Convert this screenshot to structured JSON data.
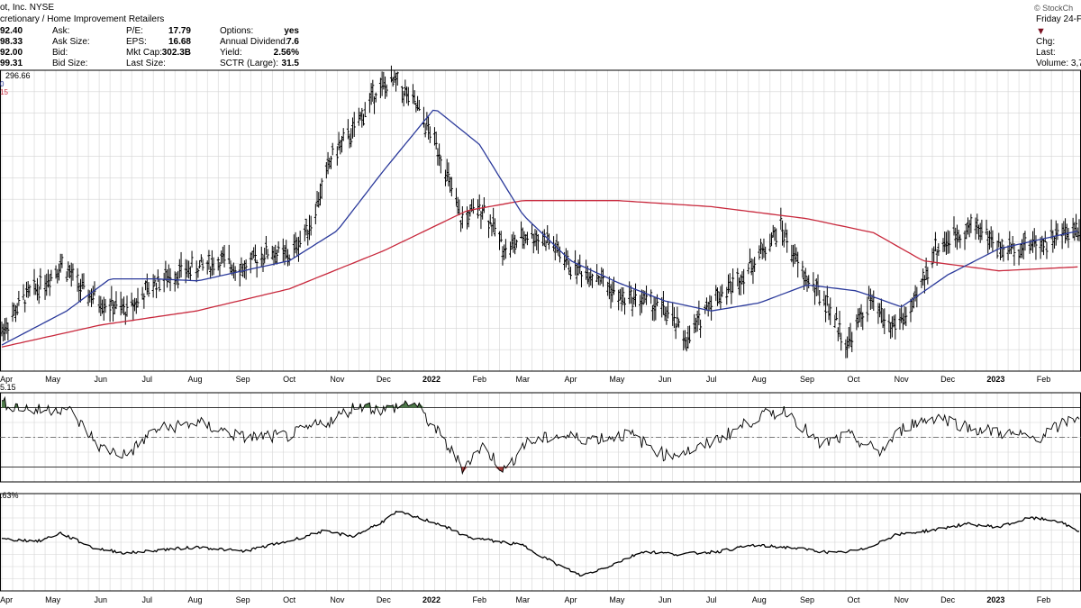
{
  "header": {
    "title_partial": "ot, Inc. NYSE",
    "subtitle_partial": "cretionary / Home Improvement Retailers",
    "watermark": "© StockCh",
    "date_partial": "Friday 24-F",
    "quote_col1": [
      "92.40",
      "98.33",
      "92.00",
      "99.31"
    ],
    "quote_col2_labels": [
      "Ask:",
      "Ask Size:",
      "Bid:",
      "Bid Size:"
    ],
    "quote_col3_labels": [
      "P/E:",
      "EPS:",
      "Mkt Cap:",
      "Last Size:"
    ],
    "quote_col3_values": [
      "17.79",
      "16.68",
      "302.3B",
      ""
    ],
    "quote_col4_labels": [
      "Options:",
      "Annual Dividend:",
      "Yield:",
      "SCTR (Large):"
    ],
    "quote_col4_values": [
      "yes",
      "7.6",
      "2.56%",
      "31.5"
    ],
    "right_labels": [
      "Chg:",
      "Last:",
      "Volume: 3,7"
    ],
    "price_label": "296.66",
    "ma_label_blue": "0",
    "ma_label_red": "15",
    "rsi_label": "5.15",
    "rel_label": ".63%"
  },
  "colors": {
    "price": "#000000",
    "sma50": "#2b3a9b",
    "sma200": "#c8283c",
    "rsi_overbought_fill": "#4e7a4a",
    "rsi_oversold_fill": "#a8403f",
    "grid": "#d4d4d4",
    "border": "#000000"
  },
  "chart_data": [
    {
      "type": "ohlc",
      "title": "ot, Inc. NYSE",
      "x_tick_labels": [
        "Apr",
        "May",
        "Jun",
        "Jul",
        "Aug",
        "Sep",
        "Oct",
        "Nov",
        "Dec",
        "2022",
        "Feb",
        "Mar",
        "Apr",
        "May",
        "Jun",
        "Jul",
        "Aug",
        "Sep",
        "Oct",
        "Nov",
        "Dec",
        "2023",
        "Feb"
      ],
      "x_range": [
        "2021-03-29",
        "2023-02-24"
      ],
      "series": [
        {
          "name": "",
          "kind": "price",
          "x": [
            "2021-03-29",
            "2021-04-12",
            "2021-04-26",
            "2021-05-07",
            "2021-05-20",
            "2021-06-04",
            "2021-06-18",
            "2021-07-06",
            "2021-07-20",
            "2021-08-04",
            "2021-08-18",
            "2021-09-02",
            "2021-09-17",
            "2021-10-01",
            "2021-10-15",
            "2021-10-29",
            "2021-11-12",
            "2021-11-26",
            "2021-12-09",
            "2021-12-22",
            "2022-01-06",
            "2022-01-20",
            "2022-02-03",
            "2022-02-18",
            "2022-03-04",
            "2022-03-18",
            "2022-04-01",
            "2022-04-18",
            "2022-05-03",
            "2022-05-17",
            "2022-06-01",
            "2022-06-16",
            "2022-06-30",
            "2022-07-15",
            "2022-07-29",
            "2022-08-15",
            "2022-08-29",
            "2022-09-13",
            "2022-09-27",
            "2022-10-11",
            "2022-10-25",
            "2022-11-08",
            "2022-11-22",
            "2022-12-06",
            "2022-12-20",
            "2023-01-05",
            "2023-01-20",
            "2023-02-03",
            "2023-02-24"
          ],
          "values": [
            290,
            306,
            315,
            324,
            310,
            304,
            300,
            314,
            319,
            322,
            325,
            321,
            330,
            327,
            344,
            378,
            390,
            410,
            414,
            402,
            380,
            345,
            352,
            330,
            338,
            335,
            322,
            318,
            306,
            306,
            300,
            285,
            305,
            313,
            325,
            342,
            318,
            305,
            283,
            305,
            292,
            300,
            330,
            338,
            343,
            330,
            333,
            335,
            342
          ]
        },
        {
          "name": "",
          "kind": "sma50",
          "x": [
            "2021-03-29",
            "2021-05-10",
            "2021-06-07",
            "2021-07-06",
            "2021-08-03",
            "2021-09-01",
            "2021-10-01",
            "2021-11-01",
            "2021-12-01",
            "2022-01-03",
            "2022-02-01",
            "2022-03-01",
            "2022-04-01",
            "2022-05-02",
            "2022-06-01",
            "2022-07-01",
            "2022-08-01",
            "2022-09-01",
            "2022-10-03",
            "2022-11-01",
            "2022-12-01",
            "2023-01-03",
            "2023-02-24"
          ],
          "values": [
            283,
            300,
            316,
            316,
            315,
            320,
            325,
            340,
            370,
            401,
            383,
            348,
            325,
            314,
            305,
            300,
            304,
            313,
            310,
            302,
            318,
            331,
            340
          ]
        },
        {
          "name": "",
          "kind": "sma200",
          "x": [
            "2021-03-29",
            "2021-06-01",
            "2021-08-02",
            "2021-10-01",
            "2021-12-01",
            "2022-01-24",
            "2022-03-01",
            "2022-05-02",
            "2022-07-01",
            "2022-09-01",
            "2022-10-14",
            "2022-11-15",
            "2023-01-03",
            "2023-02-24"
          ],
          "values": [
            282,
            293,
            300,
            311,
            330,
            350,
            355,
            355,
            352,
            346,
            339,
            325,
            320,
            322
          ]
        }
      ],
      "ylim": [
        270,
        420
      ]
    },
    {
      "type": "line",
      "title": "",
      "label": "5.15",
      "overbought": 70,
      "oversold": 30,
      "ylim": [
        20,
        80
      ],
      "x": [
        "2021-03-29",
        "2021-04-20",
        "2021-05-10",
        "2021-06-01",
        "2021-06-18",
        "2021-07-06",
        "2021-08-02",
        "2021-09-01",
        "2021-10-01",
        "2021-10-29",
        "2021-11-15",
        "2021-12-01",
        "2021-12-20",
        "2022-01-06",
        "2022-01-21",
        "2022-02-03",
        "2022-02-18",
        "2022-03-01",
        "2022-03-22",
        "2022-04-15",
        "2022-05-09",
        "2022-06-01",
        "2022-06-22",
        "2022-07-13",
        "2022-08-01",
        "2022-08-19",
        "2022-09-09",
        "2022-09-28",
        "2022-10-18",
        "2022-11-04",
        "2022-11-25",
        "2022-12-16",
        "2023-01-06",
        "2023-01-27",
        "2023-02-24"
      ],
      "values": [
        73,
        68,
        70,
        43,
        38,
        55,
        60,
        50,
        51,
        62,
        72,
        68,
        74,
        52,
        30,
        44,
        27,
        45,
        51,
        49,
        52,
        38,
        42,
        53,
        64,
        68,
        45,
        51,
        40,
        58,
        64,
        56,
        53,
        49,
        65
      ]
    },
    {
      "type": "line",
      "title": "",
      "label": ".63%",
      "ylim": [
        -8,
        8
      ],
      "x": [
        "2021-03-29",
        "2021-04-22",
        "2021-05-06",
        "2021-05-28",
        "2021-06-18",
        "2021-07-12",
        "2021-08-04",
        "2021-09-01",
        "2021-10-01",
        "2021-10-22",
        "2021-11-12",
        "2021-12-01",
        "2021-12-10",
        "2022-01-06",
        "2022-01-25",
        "2022-02-11",
        "2022-03-01",
        "2022-03-22",
        "2022-04-08",
        "2022-04-25",
        "2022-05-18",
        "2022-06-10",
        "2022-07-06",
        "2022-07-28",
        "2022-08-22",
        "2022-09-19",
        "2022-10-07",
        "2022-10-28",
        "2022-11-21",
        "2022-12-13",
        "2023-01-03",
        "2023-01-23",
        "2023-02-09",
        "2023-02-24"
      ],
      "values": [
        0.5,
        0.2,
        1.5,
        -1,
        -1.8,
        -1.2,
        -0.8,
        -1.5,
        0.2,
        1.8,
        1.0,
        3.5,
        5.0,
        3.0,
        0.8,
        0.2,
        -0.5,
        -3.5,
        -5.5,
        -4.0,
        -1.5,
        -2.0,
        -1.5,
        -0.5,
        -0.9,
        -1.8,
        -1.2,
        1.2,
        2.0,
        3.0,
        2.5,
        4.0,
        3.6,
        1.8
      ]
    }
  ]
}
